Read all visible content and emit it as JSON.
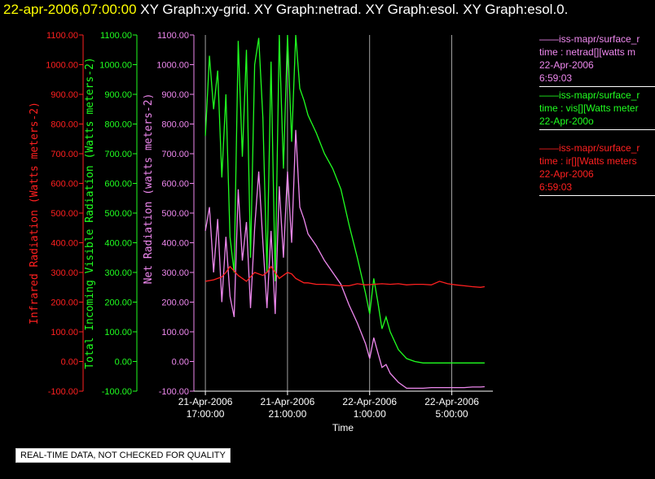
{
  "header": {
    "date": "22-apr-2006,07:00:00",
    "titles": "XY Graph:xy-grid.  XY Graph:netrad.  XY Graph:esol.  XY Graph:esol.0."
  },
  "notice": "REAL-TIME DATA, NOT CHECKED FOR QUALITY",
  "colors": {
    "ir": "#ff2020",
    "vis": "#20ff20",
    "net": "#ee88ee",
    "grid": "#c8c8c8",
    "bg": "#000000"
  },
  "legend": [
    {
      "color": "#ee88ee",
      "lines": [
        "——iss-mapr/surface_r",
        "time : netrad[][watts m",
        "22-Apr-2006",
        "6:59:03"
      ]
    },
    {
      "color": "#20ff20",
      "lines": [
        "——iss-mapr/surface_r",
        "time : vis[][Watts meter",
        "22-Apr-200o"
      ]
    },
    {
      "color": "#ff2020",
      "lines": [
        "——iss-mapr/surface_r",
        "time : ir[][Watts meters",
        "22-Apr-2006",
        "6:59:03"
      ]
    }
  ],
  "chart_data": {
    "type": "line",
    "title": "",
    "xlabel": "Time",
    "x_ticks": [
      {
        "hour": 17,
        "line1": "21-Apr-2006",
        "line2": "17:00:00"
      },
      {
        "hour": 21,
        "line1": "21-Apr-2006",
        "line2": "21:00:00"
      },
      {
        "hour": 25,
        "line1": "22-Apr-2006",
        "line2": "1:00:00"
      },
      {
        "hour": 29,
        "line1": "22-Apr-2006",
        "line2": "5:00:00"
      }
    ],
    "xlim_hours": [
      16.6,
      31.0
    ],
    "ylim": [
      -100,
      1100
    ],
    "y_ticks": [
      "1100.00",
      "1000.00",
      "900.00",
      "800.00",
      "700.00",
      "600.00",
      "500.00",
      "400.00",
      "300.00",
      "200.00",
      "100.00",
      "0.00",
      "-100.00"
    ],
    "axes": [
      {
        "name": "ir",
        "label": "Infrared Radiation (Watts meters-2)",
        "color": "#ff2020"
      },
      {
        "name": "vis",
        "label": "Total Incoming Visible Radiation (Watts meters-2)",
        "color": "#20ff20"
      },
      {
        "name": "net",
        "label": "Net Radiation (watts meters-2)",
        "color": "#ee88ee"
      }
    ],
    "grid": true,
    "series": [
      {
        "name": "vis",
        "color": "#20ff20",
        "x": [
          17.0,
          17.2,
          17.4,
          17.6,
          17.8,
          18.0,
          18.2,
          18.4,
          18.6,
          18.8,
          19.0,
          19.2,
          19.4,
          19.6,
          19.8,
          20.0,
          20.2,
          20.4,
          20.6,
          20.8,
          21.0,
          21.2,
          21.4,
          21.6,
          21.8,
          22.0,
          22.4,
          22.8,
          23.2,
          23.6,
          24.0,
          24.4,
          24.8,
          25.0,
          25.2,
          25.4,
          25.6,
          25.8,
          26.0,
          26.4,
          26.8,
          27.2,
          27.6,
          28.0,
          28.4,
          28.8,
          29.2,
          29.6,
          30.0,
          30.4,
          30.6
        ],
        "y": [
          760,
          1030,
          850,
          980,
          620,
          900,
          420,
          300,
          1080,
          690,
          1050,
          350,
          1000,
          1090,
          820,
          300,
          1010,
          270,
          1100,
          650,
          1100,
          740,
          1100,
          920,
          880,
          830,
          770,
          700,
          650,
          580,
          460,
          350,
          230,
          160,
          280,
          200,
          110,
          150,
          100,
          40,
          10,
          0,
          -5,
          -5,
          -5,
          -5,
          -5,
          -5,
          -5,
          -5,
          -5
        ]
      },
      {
        "name": "net",
        "color": "#ee88ee",
        "x": [
          17.0,
          17.2,
          17.4,
          17.6,
          17.8,
          18.0,
          18.2,
          18.4,
          18.6,
          18.8,
          19.0,
          19.2,
          19.4,
          19.6,
          19.8,
          20.0,
          20.2,
          20.4,
          20.6,
          20.8,
          21.0,
          21.2,
          21.4,
          21.6,
          21.8,
          22.0,
          22.4,
          22.8,
          23.2,
          23.6,
          24.0,
          24.4,
          24.8,
          25.0,
          25.2,
          25.4,
          25.6,
          25.8,
          26.0,
          26.4,
          26.8,
          27.2,
          27.6,
          28.0,
          28.4,
          28.8,
          29.2,
          29.6,
          30.0,
          30.4,
          30.6
        ],
        "y": [
          440,
          520,
          300,
          480,
          200,
          420,
          220,
          150,
          580,
          340,
          470,
          180,
          450,
          640,
          400,
          180,
          440,
          160,
          590,
          350,
          640,
          400,
          780,
          520,
          480,
          430,
          390,
          340,
          300,
          260,
          190,
          130,
          60,
          10,
          80,
          30,
          -20,
          -10,
          -40,
          -70,
          -90,
          -90,
          -90,
          -88,
          -88,
          -88,
          -88,
          -88,
          -86,
          -86,
          -85
        ]
      },
      {
        "name": "ir",
        "color": "#ff2020",
        "x": [
          17.0,
          17.4,
          17.8,
          18.0,
          18.2,
          18.6,
          19.0,
          19.4,
          19.8,
          20.0,
          20.2,
          20.6,
          21.0,
          21.2,
          21.4,
          21.8,
          22.0,
          22.4,
          22.8,
          23.2,
          23.6,
          24.0,
          24.4,
          24.8,
          25.2,
          25.6,
          26.0,
          26.4,
          26.8,
          27.2,
          27.6,
          28.0,
          28.4,
          28.8,
          29.2,
          29.6,
          30.0,
          30.4,
          30.6
        ],
        "y": [
          270,
          275,
          285,
          300,
          320,
          290,
          270,
          300,
          290,
          300,
          320,
          280,
          300,
          295,
          280,
          265,
          265,
          260,
          260,
          258,
          255,
          255,
          262,
          258,
          260,
          262,
          260,
          262,
          258,
          260,
          260,
          258,
          270,
          262,
          258,
          255,
          252,
          250,
          252
        ]
      }
    ]
  }
}
